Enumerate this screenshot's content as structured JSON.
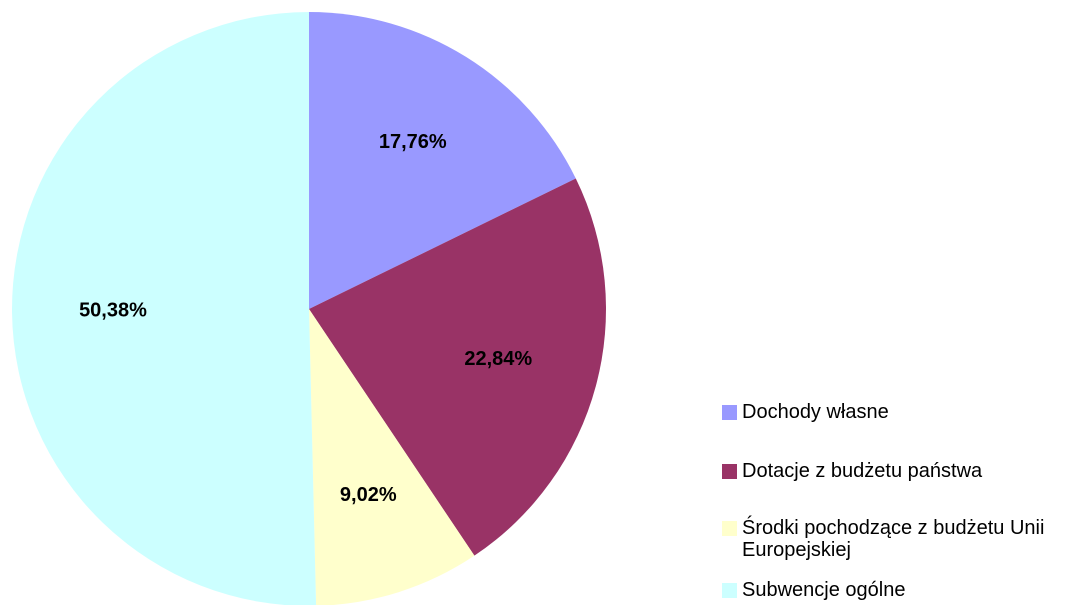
{
  "chart_data": {
    "type": "pie",
    "categories": [
      "Dochody własne",
      "Dotacje z budżetu państwa",
      "Środki pochodzące z budżetu Unii Europejskiej",
      "Subwencje ogólne"
    ],
    "values": [
      17.76,
      22.84,
      9.02,
      50.38
    ],
    "value_labels": [
      "17,76%",
      "22,84%",
      "9,02%",
      "50,38%"
    ],
    "colors": [
      "#9999ff",
      "#993366",
      "#ffffcc",
      "#ccffff"
    ],
    "legend": "right"
  }
}
